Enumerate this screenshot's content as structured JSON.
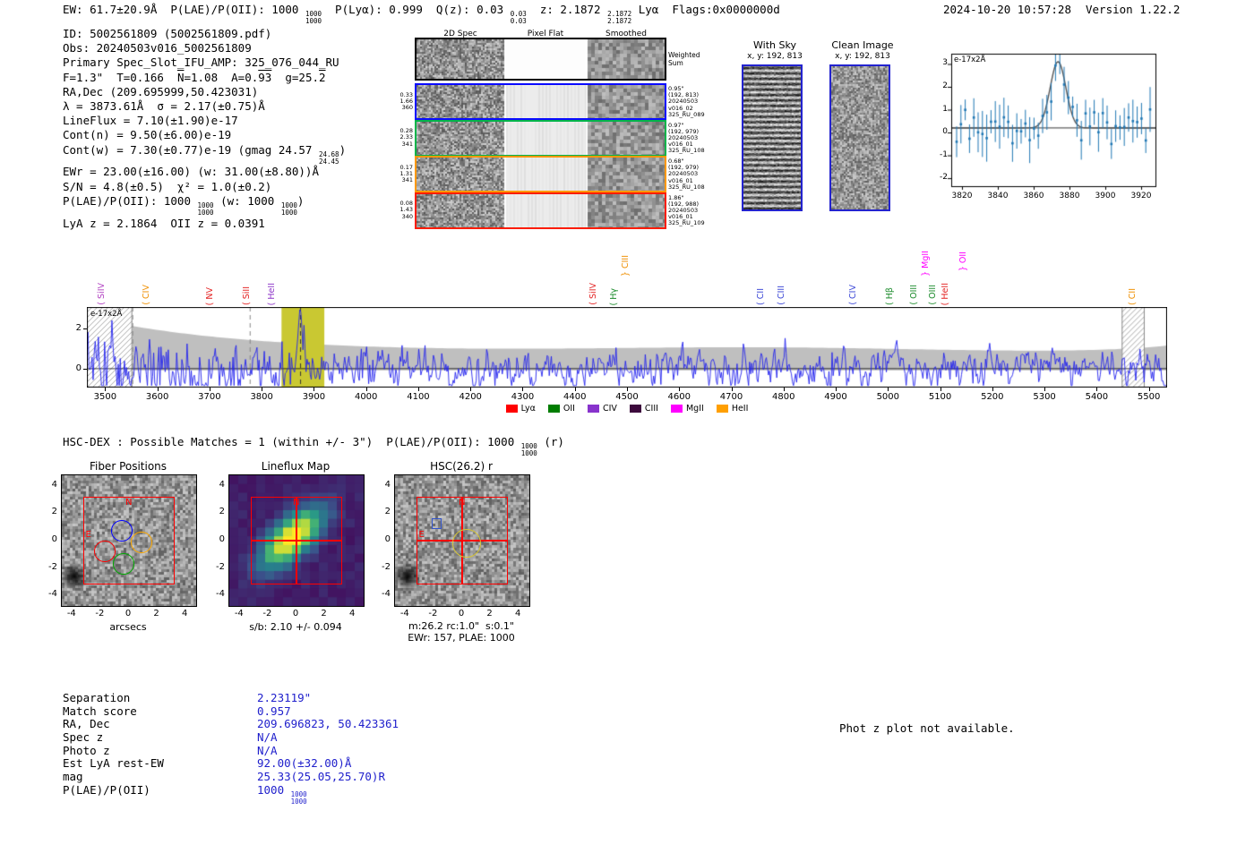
{
  "meta": {
    "datetime": "2024-10-20 10:57:28",
    "version": "Version 1.22.2"
  },
  "header": {
    "segments": [
      {
        "t": "EW: 61.7±20.9Å  P(LAE)/P(OII): 1000 "
      },
      {
        "s": [
          "1000",
          "1000"
        ]
      },
      {
        "t": "  P(Lyα): 0.999  Q(z): 0.03 "
      },
      {
        "s": [
          "0.03",
          "0.03"
        ]
      },
      {
        "t": "  z: 2.1872 "
      },
      {
        "s": [
          "2.1872",
          "2.1872"
        ]
      },
      {
        "t": " Lyα  Flags:0x0000000d"
      }
    ]
  },
  "info": {
    "lines": [
      [
        {
          "t": "ID: 5002561809 (5002561809.pdf)"
        }
      ],
      [
        {
          "t": "Obs: 20240503v016_5002561809"
        }
      ],
      [
        {
          "t": "Primary Spec_Slot_IFU_AMP: 325_076_044_RU"
        }
      ],
      [
        {
          "t": "F=1.3\"  T=0.166  "
        },
        {
          "t": "N",
          "ov": true
        },
        {
          "t": "=1.08  A=0."
        },
        {
          "t": "93",
          "ov": true
        },
        {
          "t": "  g=25."
        },
        {
          "t": "2",
          "ov": true
        }
      ],
      [
        {
          "t": "RA,Dec (209.695999,50.423031)"
        }
      ],
      [
        {
          "t": "λ = 3873.61Å  σ = 2.17(±0.75)Å"
        }
      ],
      [
        {
          "t": "LineFlux = 7.10(±1.90)e-17"
        }
      ],
      [
        {
          "t": "Cont(n) = 9.50(±6.00)e-19"
        }
      ],
      [
        {
          "t": "Cont(w) = 7.30(±0.77)e-19 (gmag 24.57 "
        },
        {
          "s": [
            "24.68",
            "24.45"
          ]
        },
        {
          "t": ")"
        }
      ],
      [
        {
          "t": "EWr = 23.00(±16.00) (w: 31.00(±8.80))Å"
        }
      ],
      [
        {
          "t": "S/N = 4.8(±0.5)  χ² = 1.0(±0.2)"
        }
      ],
      [
        {
          "t": "P(LAE)/P(OII): 1000 "
        },
        {
          "s": [
            "1000",
            "1000"
          ]
        },
        {
          "t": " (w: 1000 "
        },
        {
          "s": [
            "1000",
            "1000"
          ]
        },
        {
          "t": ")"
        }
      ],
      [
        {
          "t": "LyA z = 2.1864  OII z = 0.0391"
        }
      ]
    ]
  },
  "cutouts2d": {
    "col_headers": [
      "2D Spec",
      "Pixel Flat",
      "Smoothed"
    ],
    "rows": [
      {
        "border": "#000000",
        "big": true,
        "left": [],
        "right": [
          "Weighted",
          "Sum"
        ]
      },
      {
        "border": "#0a0aff",
        "left": [
          "0.33",
          "1.66",
          "360"
        ],
        "right": [
          "0.95\"",
          "(192, 813)",
          "20240503",
          "v016_02",
          "325_RU_089"
        ]
      },
      {
        "border": "#00b44a",
        "left": [
          "0.28",
          "2.33",
          "341"
        ],
        "right": [
          "0.97\"",
          "(192, 979)",
          "20240503",
          "v016_01",
          "325_RU_108"
        ]
      },
      {
        "border": "#ff9800",
        "left": [
          "0.17",
          "1.31",
          "341"
        ],
        "right": [
          "0.68\"",
          "(192, 979)",
          "20240503",
          "v016_01",
          "325_RU_108"
        ]
      },
      {
        "border": "#fb1c00",
        "left": [
          "0.08",
          "1.43",
          "340"
        ],
        "right": [
          "1.86\"",
          "(192, 988)",
          "20240503",
          "v016_01",
          "325_RU_109"
        ]
      }
    ]
  },
  "withsky": {
    "title": "With Sky",
    "subtitle": "x, y: 192, 813"
  },
  "clean": {
    "title": "Clean Image",
    "subtitle": "x, y: 192, 813"
  },
  "hsc_line": {
    "segments": [
      {
        "t": "HSC-DEX : Possible Matches = 1 (within +/- 3\")  P(LAE)/P(OII): 1000 "
      },
      {
        "s": [
          "1000",
          "1000"
        ]
      },
      {
        "t": " (r)"
      }
    ]
  },
  "match_table": {
    "rows": [
      {
        "label": "Separation",
        "value": [
          {
            "t": "2.23119\""
          }
        ]
      },
      {
        "label": "Match score",
        "value": [
          {
            "t": "0.957"
          }
        ]
      },
      {
        "label": "RA, Dec",
        "value": [
          {
            "t": "209.696823, 50.423361"
          }
        ]
      },
      {
        "label": "Spec z",
        "value": [
          {
            "t": "N/A"
          }
        ]
      },
      {
        "label": "Photo z",
        "value": [
          {
            "t": "N/A"
          }
        ]
      },
      {
        "label": "Est LyA rest-EW",
        "value": [
          {
            "t": "92.00(±32.00)Å"
          }
        ]
      },
      {
        "label": "mag",
        "value": [
          {
            "t": "25.33(25.05,25.70)R"
          }
        ]
      },
      {
        "label": "P(LAE)/P(OII)",
        "value": [
          {
            "t": "1000 "
          },
          {
            "s": [
              "1000",
              "1000"
            ]
          }
        ]
      }
    ]
  },
  "photz_note": "Phot z plot not available.",
  "chart_data": [
    {
      "id": "line_fit_zoom",
      "type": "scatter",
      "annotation": "e-17x2Å",
      "xlim": [
        3814,
        3928
      ],
      "ylim": [
        -2.35,
        3.45
      ],
      "xticks": [
        3820,
        3840,
        3860,
        3880,
        3900,
        3920
      ],
      "yticks": [
        -2,
        -1,
        0,
        1,
        2,
        3
      ],
      "fit": {
        "center": 3873.61,
        "sigma": 2.17,
        "amplitude": 2.9,
        "continuum": 0.2
      },
      "point_color": "#1f77b4",
      "fit_color": "#555555",
      "description": "blue flux points with error bars around continuum ~0.2, Gaussian emission line peaking ~3 at 3873.61Å"
    },
    {
      "id": "full_spectrum",
      "type": "line",
      "annotation": "e-17x2Å",
      "xlim": [
        3465,
        5535
      ],
      "ylim": [
        -0.95,
        3.1
      ],
      "xticks": [
        3500,
        3600,
        3700,
        3800,
        3900,
        4000,
        4100,
        4200,
        4300,
        4400,
        4500,
        4600,
        4700,
        4800,
        4900,
        5000,
        5100,
        5200,
        5300,
        5400,
        5500
      ],
      "yticks": [
        0,
        2
      ],
      "line_color": "#2222ee",
      "noise_band_color": "#bfbfbf",
      "highlight_band": {
        "x0": 3838,
        "x1": 3920,
        "color": "#c9c832"
      },
      "hatch_bands": [
        [
          3465,
          3552
        ],
        [
          5448,
          5492
        ]
      ],
      "dashed_lines": [
        {
          "x": 3552,
          "color": "#888888"
        },
        {
          "x": 3777,
          "color": "#888888"
        },
        {
          "x": 3873.61,
          "color": "#333333"
        }
      ],
      "features": {
        "line_center": 3873.61,
        "line_peak": 2.9,
        "noise_envelope_blue": 2.5,
        "noise_envelope_red": 0.9
      },
      "emission_labels": [
        {
          "label": "SiIV",
          "suffix": "(",
          "wave": 3505,
          "color": "#b040c0",
          "tier": 0
        },
        {
          "label": "CIV",
          "suffix": "(",
          "wave": 3590,
          "color": "#ef8f00",
          "tier": 0
        },
        {
          "label": "NV",
          "suffix": "(",
          "wave": 3712,
          "color": "#e32222",
          "tier": 0
        },
        {
          "label": "SiII",
          "suffix": "(",
          "wave": 3782,
          "color": "#e32222",
          "tier": 0
        },
        {
          "label": "HeII",
          "suffix": "(",
          "wave": 3830,
          "color": "#8d35c8",
          "tier": 0
        },
        {
          "label": "SiIV",
          "suffix": "(",
          "wave": 4446,
          "color": "#e32222",
          "tier": 0
        },
        {
          "label": "Hγ",
          "suffix": "(",
          "wave": 4487,
          "color": "#1e8c2e",
          "tier": 0
        },
        {
          "label": "CIII",
          "suffix": "}",
          "wave": 4508,
          "color": "#ef8f00",
          "tier": 1
        },
        {
          "label": "CII",
          "suffix": "(",
          "wave": 4768,
          "color": "#3a46d6",
          "tier": 0
        },
        {
          "label": "CIII",
          "suffix": "(",
          "wave": 4808,
          "color": "#3a46d6",
          "tier": 0
        },
        {
          "label": "CIV",
          "suffix": "(",
          "wave": 4945,
          "color": "#3a46d6",
          "tier": 0
        },
        {
          "label": "Hβ",
          "suffix": "(",
          "wave": 5015,
          "color": "#1e8c2e",
          "tier": 0
        },
        {
          "label": "OIII",
          "suffix": "(",
          "wave": 5062,
          "color": "#1e8c2e",
          "tier": 0
        },
        {
          "label": "MgII",
          "suffix": "}",
          "wave": 5083,
          "color": "#ff00ff",
          "tier": 1
        },
        {
          "label": "OIII",
          "suffix": "(",
          "wave": 5098,
          "color": "#1e8c2e",
          "tier": 0
        },
        {
          "label": "HeII",
          "suffix": "(",
          "wave": 5122,
          "color": "#e32222",
          "tier": 0
        },
        {
          "label": "OII",
          "suffix": "}",
          "wave": 5155,
          "color": "#ff00ff",
          "tier": 2
        },
        {
          "label": "CII",
          "suffix": "(",
          "wave": 5480,
          "color": "#ef8f00",
          "tier": 0
        }
      ],
      "legend": [
        {
          "label": "Lyα",
          "color": "#ff0000"
        },
        {
          "label": "OII",
          "color": "#007d00"
        },
        {
          "label": "CIV",
          "color": "#8833cc"
        },
        {
          "label": "CIII",
          "color": "#3d0a3d"
        },
        {
          "label": "MgII",
          "color": "#ff00ff"
        },
        {
          "label": "HeII",
          "color": "#ff9f00"
        }
      ]
    },
    {
      "id": "fiber_positions",
      "type": "heatmap",
      "title": "Fiber Positions",
      "xlabel": "arcsecs",
      "xticks": [
        -4,
        -2,
        0,
        2,
        4
      ],
      "yticks": [
        4,
        2,
        0,
        -2,
        -4
      ],
      "range": [
        -4.75,
        4.75
      ],
      "compass": {
        "north": "N",
        "east": "E"
      },
      "box": {
        "x0": -3.2,
        "x1": 3.2,
        "y0": -3.2,
        "y1": 3.2,
        "color": "#ff0000"
      },
      "fibers": [
        {
          "x": -0.5,
          "y": 0.7,
          "r": 0.75,
          "color": "#0000ff"
        },
        {
          "x": -1.7,
          "y": -0.8,
          "r": 0.75,
          "color": "#ff0000"
        },
        {
          "x": -0.4,
          "y": -1.7,
          "r": 0.75,
          "color": "#00aa00"
        },
        {
          "x": 0.9,
          "y": -0.15,
          "r": 0.75,
          "color": "#ffaa00"
        }
      ]
    },
    {
      "id": "lineflux_map",
      "type": "heatmap",
      "title": "Lineflux Map",
      "caption": "s/b: 2.10 +/- 0.094",
      "xticks": [
        -4,
        -2,
        0,
        2,
        4
      ],
      "yticks": [
        4,
        2,
        0,
        -2,
        -4
      ],
      "range": [
        -4.75,
        4.75
      ],
      "colormap": "viridis",
      "compass": {
        "north": "N"
      },
      "box": {
        "x0": -3.2,
        "x1": 3.2,
        "y0": -3.2,
        "y1": 3.2,
        "color": "#ff0000"
      },
      "crosshair": {
        "x": 0,
        "y": 0,
        "color": "#ff0000"
      }
    },
    {
      "id": "hsc_cutout",
      "type": "heatmap",
      "title": "HSC(26.2) r",
      "caption_line1": "m:26.2 rc:1.0\"  s:0.1\"",
      "caption_line2": "EWr: 157, PLAE: 1000",
      "xticks": [
        -4,
        -2,
        0,
        2,
        4
      ],
      "yticks": [
        4,
        2,
        0,
        -2,
        -4
      ],
      "range": [
        -4.75,
        4.75
      ],
      "compass": {
        "north": "N",
        "east": "E"
      },
      "box": {
        "x0": -3.2,
        "x1": 3.2,
        "y0": -3.2,
        "y1": 3.2,
        "color": "#ff0000"
      },
      "crosshair": {
        "x": 0,
        "y": 0,
        "color": "#ff0000"
      },
      "aperture": {
        "x": 0.3,
        "y": -0.2,
        "r": 1.0,
        "color": "#d4c438"
      },
      "catalog_box": {
        "x": -1.8,
        "y": 1.25,
        "w": 0.75,
        "h": 0.75,
        "color": "#3355cc"
      }
    }
  ]
}
